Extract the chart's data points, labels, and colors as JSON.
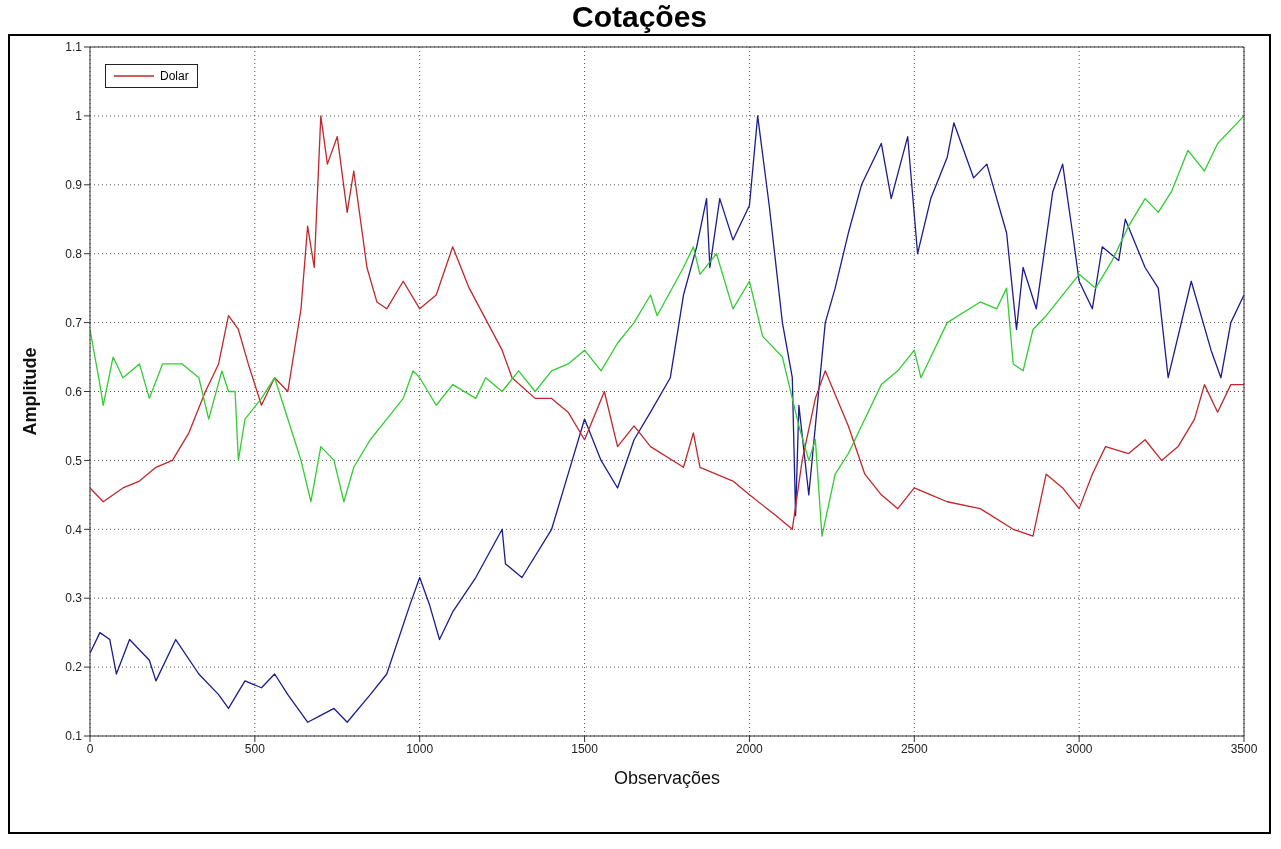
{
  "chart_data": {
    "type": "line",
    "title": "Cotações",
    "xlabel": "Observações",
    "ylabel": "Amplitude",
    "xlim": [
      0,
      3500
    ],
    "xticks": [
      0,
      500,
      1000,
      1500,
      2000,
      2500,
      3000,
      3500
    ],
    "ylim": [
      0.1,
      1.1
    ],
    "yticks": [
      0.1,
      0.2,
      0.3,
      0.4,
      0.5,
      0.6,
      0.7,
      0.8,
      0.9,
      1,
      1.1
    ],
    "grid": true,
    "legend": "top left",
    "line_style": "solid",
    "marker": "none",
    "series": [
      {
        "color": "#1c1c8f",
        "x": [
          0,
          30,
          60,
          80,
          120,
          180,
          200,
          260,
          330,
          390,
          420,
          470,
          520,
          560,
          600,
          660,
          700,
          740,
          780,
          850,
          900,
          970,
          1000,
          1030,
          1060,
          1100,
          1170,
          1250,
          1260,
          1310,
          1400,
          1450,
          1500,
          1550,
          1600,
          1650,
          1700,
          1760,
          1800,
          1840,
          1870,
          1880,
          1910,
          1950,
          2000,
          2025,
          2060,
          2100,
          2130,
          2140,
          2150,
          2180,
          2230,
          2260,
          2300,
          2340,
          2400,
          2430,
          2480,
          2510,
          2550,
          2600,
          2620,
          2680,
          2720,
          2780,
          2810,
          2830,
          2870,
          2920,
          2950,
          2980,
          3000,
          3040,
          3070,
          3120,
          3140,
          3200,
          3240,
          3270,
          3340,
          3400,
          3430,
          3460,
          3500
        ],
        "values": [
          0.22,
          0.25,
          0.24,
          0.19,
          0.24,
          0.21,
          0.18,
          0.24,
          0.19,
          0.16,
          0.14,
          0.18,
          0.17,
          0.19,
          0.16,
          0.12,
          0.13,
          0.14,
          0.12,
          0.16,
          0.19,
          0.29,
          0.33,
          0.29,
          0.24,
          0.28,
          0.33,
          0.4,
          0.35,
          0.33,
          0.4,
          0.48,
          0.56,
          0.5,
          0.46,
          0.53,
          0.57,
          0.62,
          0.74,
          0.81,
          0.88,
          0.78,
          0.88,
          0.82,
          0.87,
          1.0,
          0.87,
          0.7,
          0.62,
          0.42,
          0.58,
          0.45,
          0.7,
          0.75,
          0.83,
          0.9,
          0.96,
          0.88,
          0.97,
          0.8,
          0.88,
          0.94,
          0.99,
          0.91,
          0.93,
          0.83,
          0.69,
          0.78,
          0.72,
          0.89,
          0.93,
          0.83,
          0.76,
          0.72,
          0.81,
          0.79,
          0.85,
          0.78,
          0.75,
          0.62,
          0.76,
          0.66,
          0.62,
          0.7,
          0.74
        ]
      },
      {
        "name": "Dolar",
        "color": "#c0282c",
        "x": [
          0,
          40,
          100,
          150,
          200,
          250,
          300,
          350,
          390,
          420,
          450,
          480,
          520,
          560,
          600,
          640,
          660,
          680,
          700,
          720,
          750,
          780,
          800,
          840,
          870,
          900,
          950,
          1000,
          1050,
          1100,
          1150,
          1250,
          1280,
          1350,
          1400,
          1450,
          1500,
          1560,
          1600,
          1650,
          1700,
          1800,
          1830,
          1850,
          1950,
          2000,
          2080,
          2130,
          2160,
          2200,
          2230,
          2300,
          2350,
          2400,
          2450,
          2500,
          2550,
          2600,
          2700,
          2800,
          2860,
          2900,
          2950,
          3000,
          3040,
          3080,
          3150,
          3200,
          3250,
          3300,
          3350,
          3380,
          3420,
          3460,
          3500
        ],
        "values": [
          0.46,
          0.44,
          0.46,
          0.47,
          0.49,
          0.5,
          0.54,
          0.6,
          0.64,
          0.71,
          0.69,
          0.64,
          0.58,
          0.62,
          0.6,
          0.72,
          0.84,
          0.78,
          1.0,
          0.93,
          0.97,
          0.86,
          0.92,
          0.78,
          0.73,
          0.72,
          0.76,
          0.72,
          0.74,
          0.81,
          0.75,
          0.66,
          0.62,
          0.59,
          0.59,
          0.57,
          0.53,
          0.6,
          0.52,
          0.55,
          0.52,
          0.49,
          0.54,
          0.49,
          0.47,
          0.45,
          0.42,
          0.4,
          0.5,
          0.59,
          0.63,
          0.55,
          0.48,
          0.45,
          0.43,
          0.46,
          0.45,
          0.44,
          0.43,
          0.4,
          0.39,
          0.48,
          0.46,
          0.43,
          0.48,
          0.52,
          0.51,
          0.53,
          0.5,
          0.52,
          0.56,
          0.61,
          0.57,
          0.61,
          0.61
        ]
      },
      {
        "color": "#33cc33",
        "x": [
          0,
          30,
          40,
          70,
          100,
          150,
          180,
          220,
          280,
          330,
          360,
          400,
          420,
          440,
          450,
          470,
          520,
          560,
          600,
          640,
          670,
          700,
          740,
          770,
          800,
          850,
          900,
          950,
          980,
          1000,
          1050,
          1100,
          1170,
          1200,
          1250,
          1300,
          1350,
          1400,
          1450,
          1500,
          1550,
          1600,
          1650,
          1700,
          1720,
          1800,
          1830,
          1850,
          1900,
          1950,
          2000,
          2040,
          2100,
          2150,
          2180,
          2200,
          2220,
          2260,
          2300,
          2350,
          2400,
          2450,
          2500,
          2520,
          2550,
          2600,
          2700,
          2750,
          2780,
          2800,
          2830,
          2860,
          2900,
          3000,
          3050,
          3100,
          3150,
          3200,
          3240,
          3280,
          3330,
          3380,
          3420,
          3500
        ],
        "values": [
          0.69,
          0.61,
          0.58,
          0.65,
          0.62,
          0.64,
          0.59,
          0.64,
          0.64,
          0.62,
          0.56,
          0.63,
          0.6,
          0.6,
          0.5,
          0.56,
          0.59,
          0.62,
          0.56,
          0.5,
          0.44,
          0.52,
          0.5,
          0.44,
          0.49,
          0.53,
          0.56,
          0.59,
          0.63,
          0.62,
          0.58,
          0.61,
          0.59,
          0.62,
          0.6,
          0.63,
          0.6,
          0.63,
          0.64,
          0.66,
          0.63,
          0.67,
          0.7,
          0.74,
          0.71,
          0.78,
          0.81,
          0.77,
          0.8,
          0.72,
          0.76,
          0.68,
          0.65,
          0.55,
          0.5,
          0.53,
          0.39,
          0.48,
          0.51,
          0.56,
          0.61,
          0.63,
          0.66,
          0.62,
          0.65,
          0.7,
          0.73,
          0.72,
          0.75,
          0.64,
          0.63,
          0.69,
          0.71,
          0.77,
          0.75,
          0.79,
          0.84,
          0.88,
          0.86,
          0.89,
          0.95,
          0.92,
          0.96,
          1.0
        ]
      }
    ]
  }
}
